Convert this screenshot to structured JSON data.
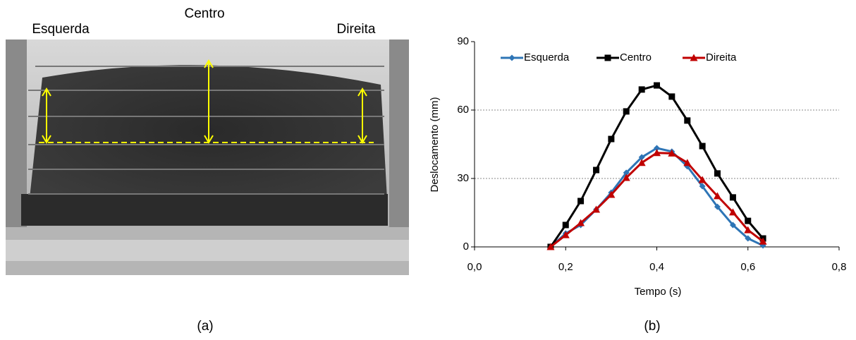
{
  "photo_labels": {
    "left": "Esquerda",
    "center": "Centro",
    "right": "Direita"
  },
  "captions": {
    "a": "(a)",
    "b": "(b)"
  },
  "chart_data": {
    "type": "line",
    "x_label": "Tempo (s)",
    "y_label": "Deslocamento (mm)",
    "xlim": [
      0,
      0.8
    ],
    "ylim": [
      0,
      90
    ],
    "xticks": [
      {
        "value": 0,
        "label": "0,0"
      },
      {
        "value": 0.2,
        "label": "0,2"
      },
      {
        "value": 0.4,
        "label": "0,4"
      },
      {
        "value": 0.6,
        "label": "0,6"
      },
      {
        "value": 0.8,
        "label": "0,8"
      }
    ],
    "yticks": [
      0,
      30,
      60,
      90
    ],
    "grid": true,
    "legend": "top",
    "x": [
      0.167,
      0.2,
      0.233,
      0.267,
      0.3,
      0.333,
      0.367,
      0.4,
      0.433,
      0.467,
      0.5,
      0.533,
      0.567,
      0.6,
      0.633
    ],
    "series": [
      {
        "name": "Esquerda",
        "color": "#2e75b6",
        "marker": "diamond",
        "values": [
          0,
          5.9,
          9.6,
          16.4,
          23.8,
          32.5,
          39.3,
          43.3,
          41.8,
          35.3,
          26.6,
          17.6,
          9.6,
          3.7,
          0.6
        ]
      },
      {
        "name": "Centro",
        "color": "#000000",
        "marker": "square",
        "values": [
          0,
          9.6,
          20.1,
          33.7,
          47.3,
          59.4,
          69.0,
          70.8,
          65.9,
          55.4,
          44.2,
          32.2,
          21.7,
          11.4,
          3.7
        ]
      },
      {
        "name": "Direita",
        "color": "#c00000",
        "marker": "triangle",
        "values": [
          0,
          5.2,
          10.5,
          16.4,
          22.9,
          30.3,
          36.9,
          41.2,
          41.0,
          36.9,
          29.4,
          22.3,
          15.2,
          7.4,
          2.4
        ]
      }
    ]
  }
}
